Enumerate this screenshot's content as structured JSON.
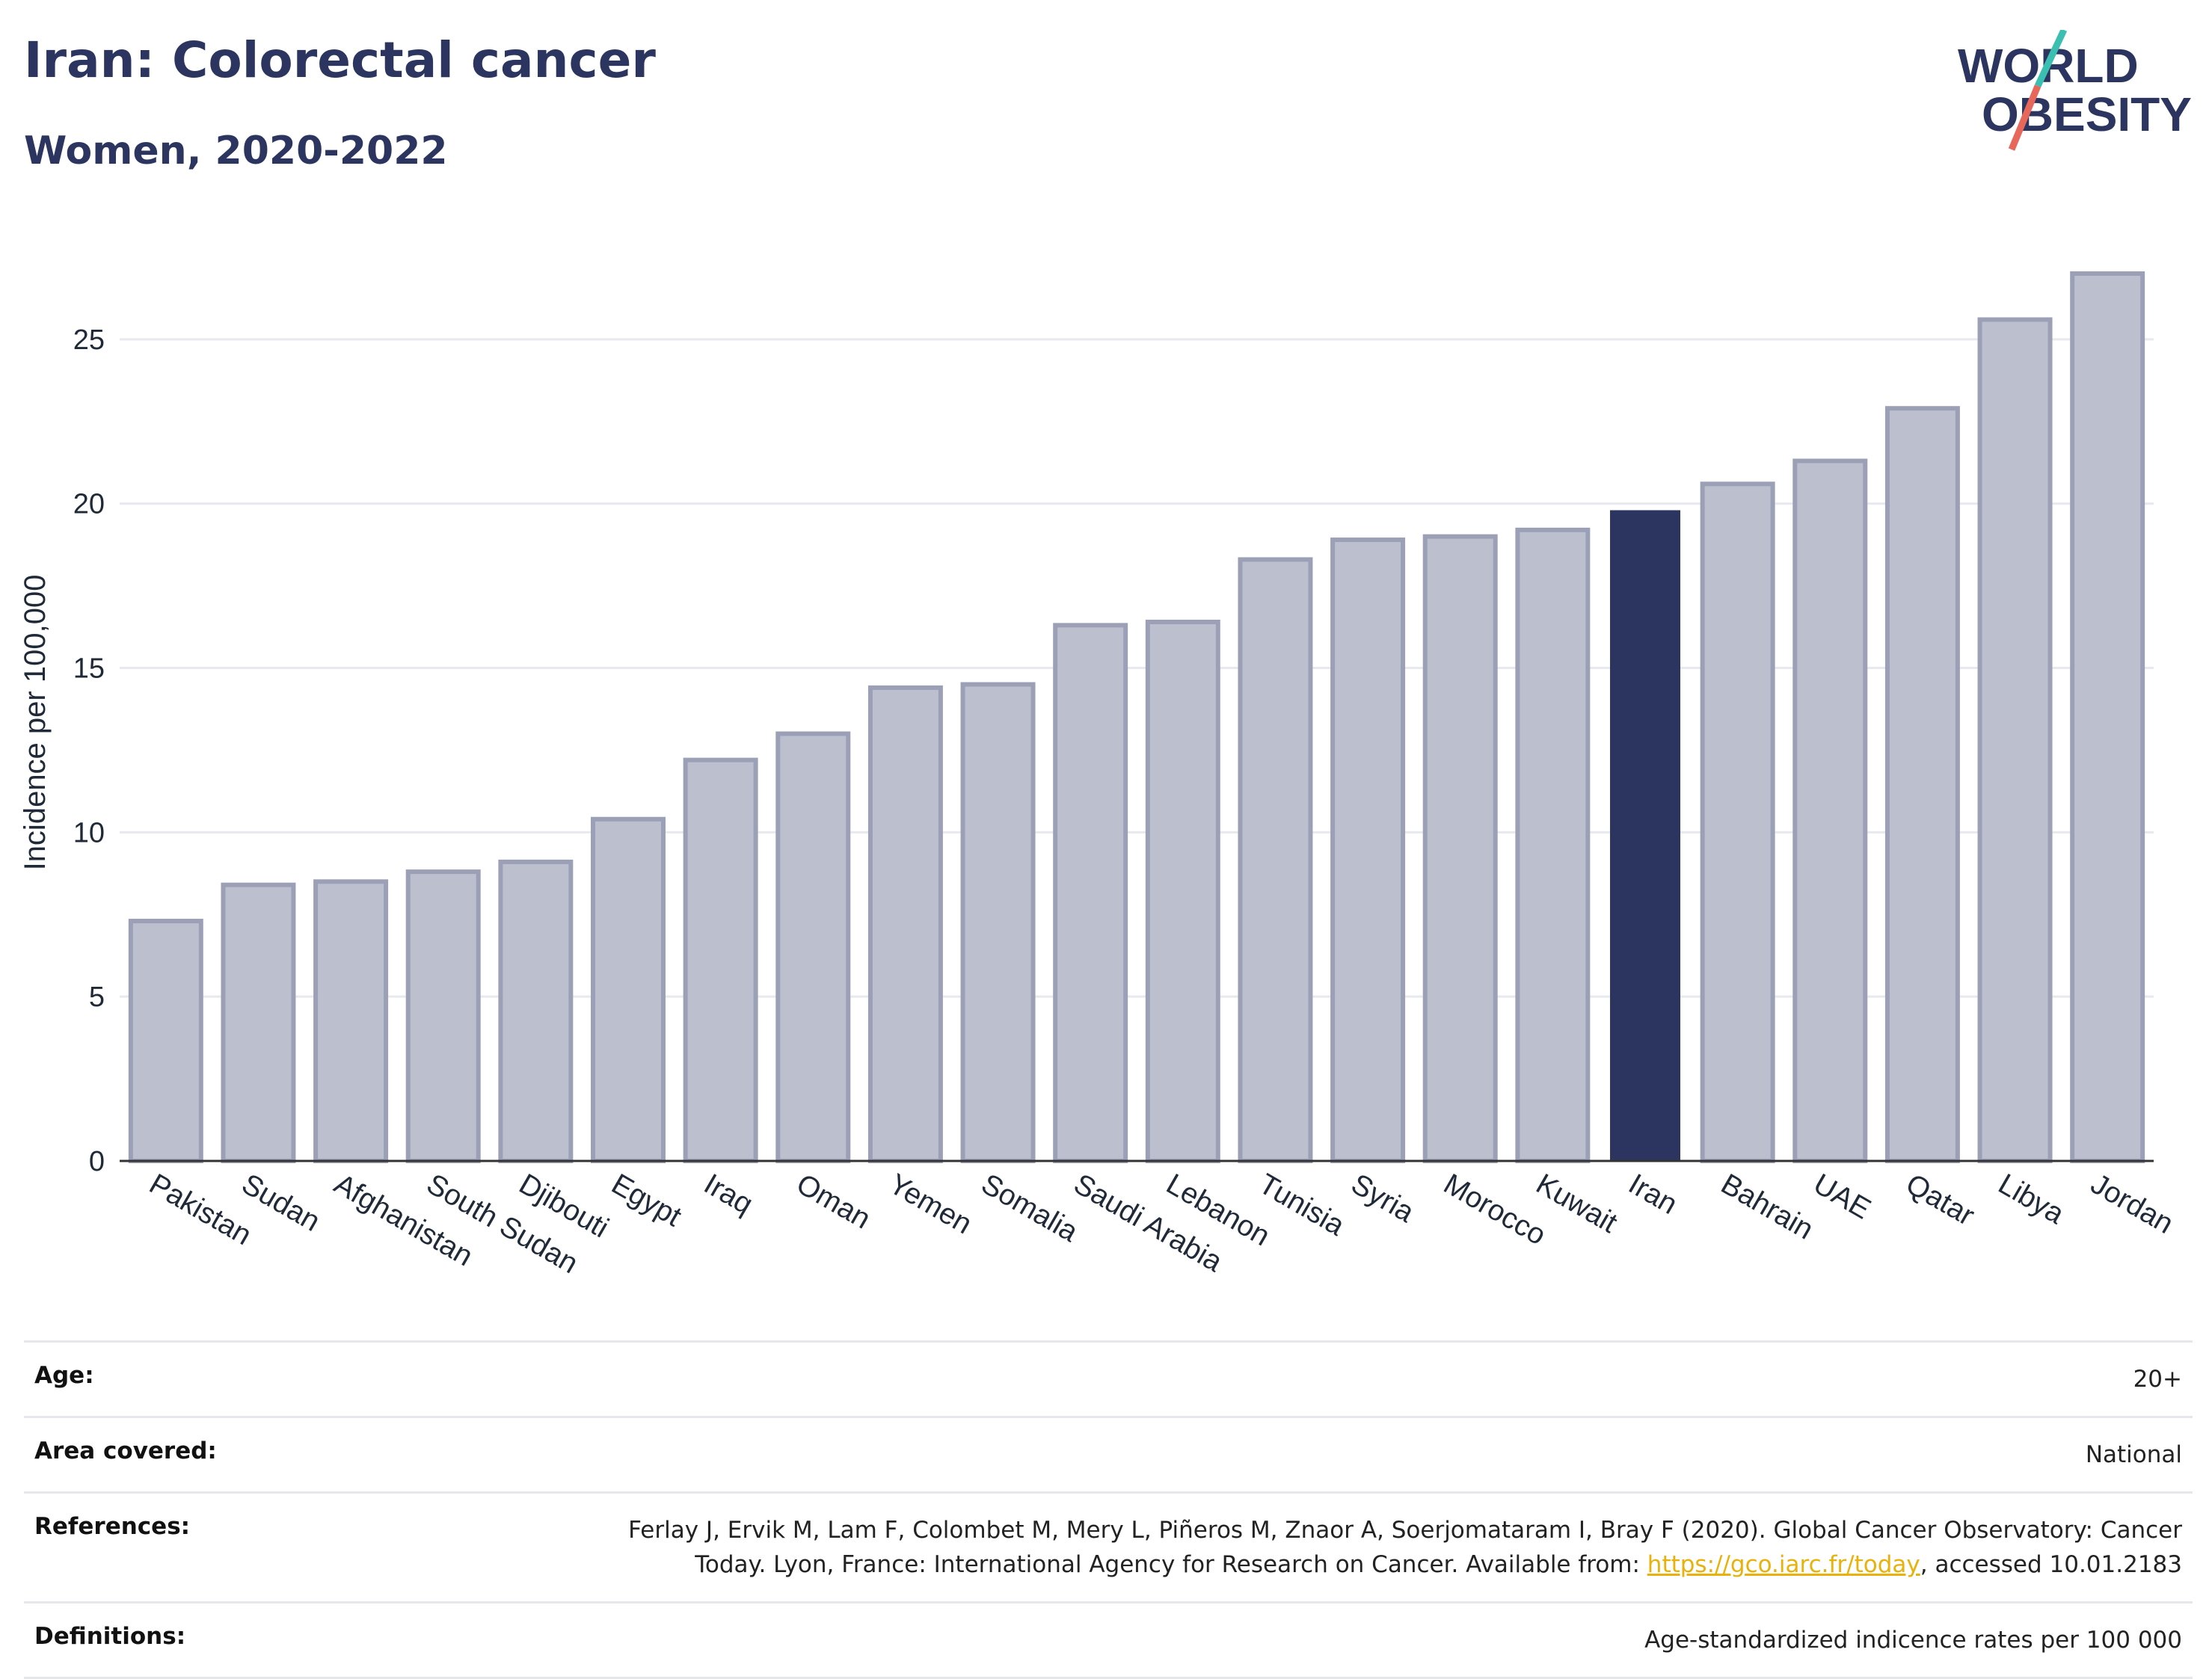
{
  "header": {
    "title": "Iran: Colorectal cancer",
    "subtitle": "Women, 2020-2022"
  },
  "logo": {
    "line1": "WORLD",
    "line2": "OBESITY",
    "accent_top": "#3bbfb0",
    "accent_bottom": "#e8675b"
  },
  "colors": {
    "bar": "#bcc0ce",
    "bar_stroke": "#9ba0b6",
    "highlight": "#2b355f",
    "grid": "#e8e9ee",
    "axis": "#333333"
  },
  "chart_data": {
    "type": "bar",
    "categories": [
      "Pakistan",
      "Sudan",
      "Afghanistan",
      "South Sudan",
      "Djibouti",
      "Egypt",
      "Iraq",
      "Oman",
      "Yemen",
      "Somalia",
      "Saudi Arabia",
      "Lebanon",
      "Tunisia",
      "Syria",
      "Morocco",
      "Kuwait",
      "Iran",
      "Bahrain",
      "UAE",
      "Qatar",
      "Libya",
      "Jordan"
    ],
    "values": [
      7.3,
      8.4,
      8.5,
      8.8,
      9.1,
      10.4,
      12.2,
      13.0,
      14.4,
      14.5,
      16.3,
      16.4,
      18.3,
      18.9,
      19.0,
      19.2,
      19.8,
      20.6,
      21.3,
      22.9,
      25.6,
      27.0
    ],
    "highlight": "Iran",
    "ylabel": "Incidence per 100,000",
    "xlabel": "",
    "ylim": [
      0,
      28.5
    ],
    "yticks": [
      0,
      5,
      10,
      15,
      20,
      25
    ],
    "grid": true
  },
  "info": {
    "age_label": "Age:",
    "age_value": "20+",
    "area_label": "Area covered:",
    "area_value": "National",
    "references_label": "References:",
    "references_line1": "Ferlay J, Ervik M, Lam F, Colombet M, Mery L, Piñeros M, Znaor A, Soerjomataram I, Bray F (2020). Global Cancer Observatory: Cancer",
    "references_line2_pre": "Today. Lyon, France: International Agency for Research on Cancer. Available from: ",
    "references_link": "https://gco.iarc.fr/today",
    "references_line2_post": ", accessed 10.01.2183",
    "definitions_label": "Definitions:",
    "definitions_value": "Age-standardized indicence rates per 100 000"
  }
}
